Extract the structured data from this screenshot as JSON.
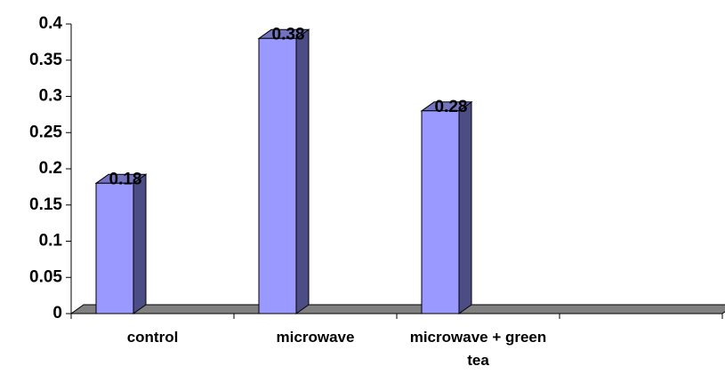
{
  "chart_data": {
    "type": "bar3d",
    "categories": [
      "control",
      "microwave",
      "microwave + green tea",
      null
    ],
    "values": [
      0.18,
      0.38,
      0.28,
      null
    ],
    "color": "#9999ff",
    "ylim": [
      0,
      0.4
    ],
    "yticks": [
      0,
      0.05,
      0.1,
      0.15,
      0.2,
      0.25,
      0.3,
      0.35,
      0.4
    ]
  }
}
